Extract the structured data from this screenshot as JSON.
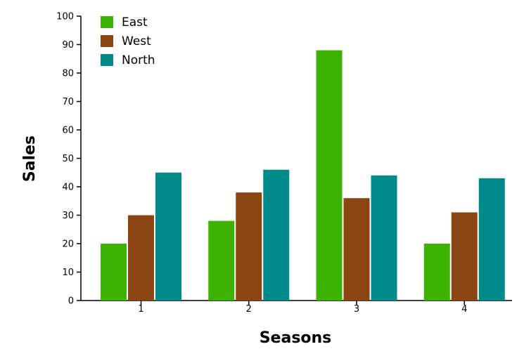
{
  "chart_data": {
    "type": "bar",
    "title": "",
    "xlabel": "Seasons",
    "ylabel": "Sales",
    "categories": [
      "1",
      "2",
      "3",
      "4"
    ],
    "series": [
      {
        "name": "East",
        "color": "#3cb300",
        "values": [
          20,
          28,
          88,
          20
        ]
      },
      {
        "name": "West",
        "color": "#8b4513",
        "values": [
          30,
          38,
          36,
          31
        ]
      },
      {
        "name": "North",
        "color": "#008b8b",
        "values": [
          45,
          46,
          44,
          43
        ]
      }
    ],
    "ylim": [
      0,
      100
    ],
    "yticks": [
      0,
      10,
      20,
      30,
      40,
      50,
      60,
      70,
      80,
      90,
      100
    ],
    "grid": false,
    "legend_position": "top-left"
  }
}
